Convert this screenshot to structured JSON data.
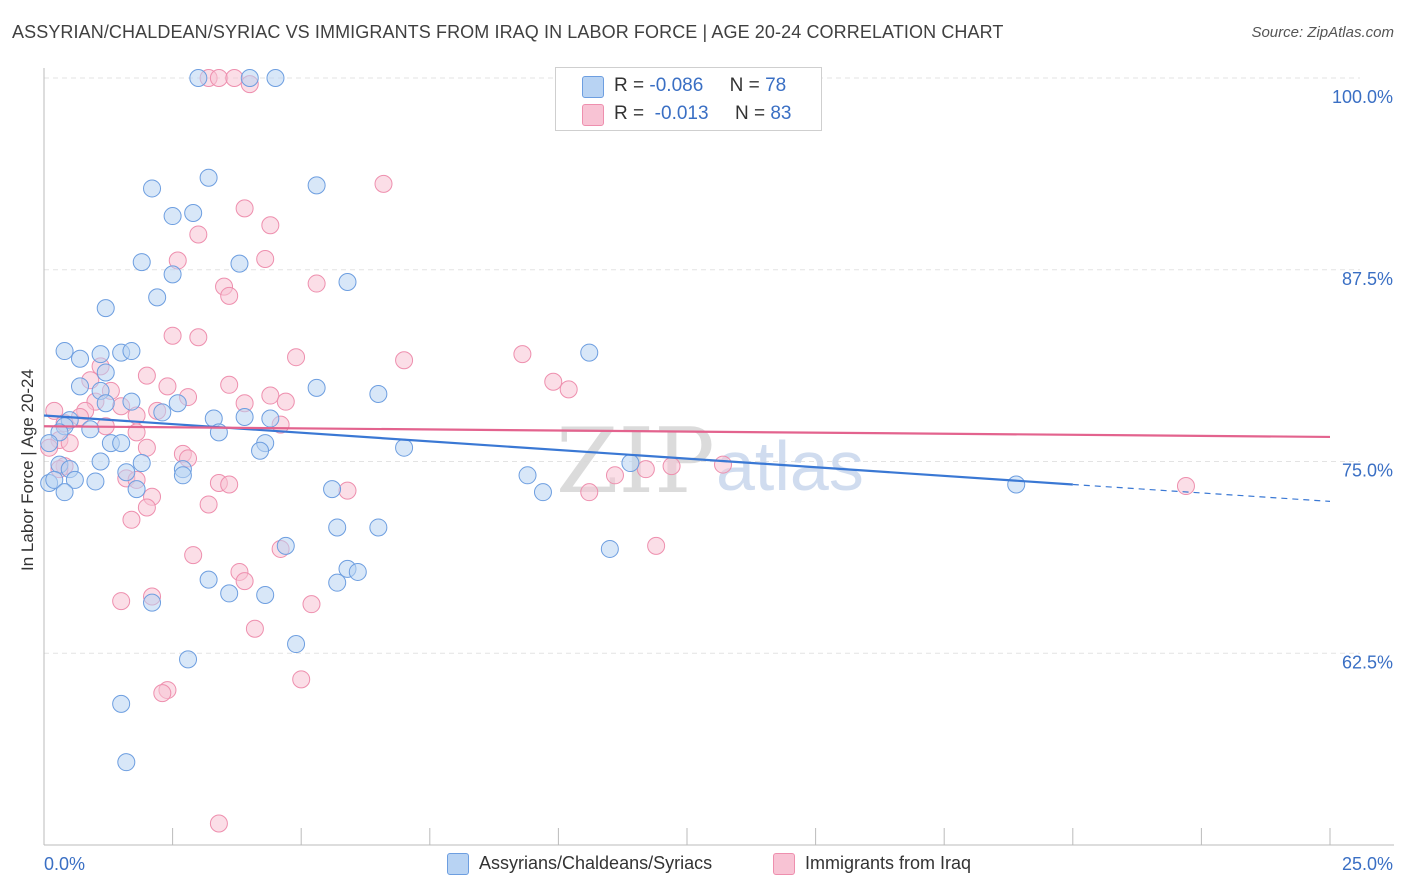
{
  "header": {
    "title": "ASSYRIAN/CHALDEAN/SYRIAC VS IMMIGRANTS FROM IRAQ IN LABOR FORCE | AGE 20-24 CORRELATION CHART",
    "source": "Source: ZipAtlas.com"
  },
  "legend": {
    "series1": {
      "r_label": "R =",
      "r_value": "-0.086",
      "n_label": "N =",
      "n_value": "78"
    },
    "series2": {
      "r_label": "R =",
      "r_value": "-0.013",
      "n_label": "N =",
      "n_value": "83"
    }
  },
  "bottom_legend": {
    "series1": "Assyrians/Chaldeans/Syriacs",
    "series2": "Immigrants from Iraq"
  },
  "watermark": {
    "part1": "ZIP",
    "part2": "atlas"
  },
  "colors": {
    "series1_fill": "#b8d3f3",
    "series1_stroke": "#6d9ee0",
    "series1_line": "#3a78d4",
    "series2_fill": "#f8c3d4",
    "series2_stroke": "#ee8fae",
    "series2_line": "#e3638e",
    "axis_label": "#3a6fc4",
    "grid": "#e3e3e3"
  },
  "chart_data": {
    "type": "scatter",
    "title": "ASSYRIAN/CHALDEAN/SYRIAC VS IMMIGRANTS FROM IRAQ IN LABOR FORCE | AGE 20-24 CORRELATION CHART",
    "xlabel": "",
    "ylabel": "In Labor Force | Age 20-24",
    "xlim": [
      0,
      25
    ],
    "ylim": [
      50,
      101
    ],
    "x_tick_labels": [
      "0.0%",
      "25.0%"
    ],
    "y_ticks": [
      62.5,
      75.0,
      87.5,
      100.0
    ],
    "y_tick_labels": [
      "62.5%",
      "75.0%",
      "87.5%",
      "100.0%"
    ],
    "grid": true,
    "legend_position": "top-center",
    "series": [
      {
        "name": "Assyrians/Chaldeans/Syriacs",
        "r": -0.086,
        "n": 78,
        "trend": {
          "x": [
            0,
            20
          ],
          "y": [
            78.0,
            73.5
          ],
          "dashed_to_x": 25,
          "dashed_end_y": 72.4
        },
        "points": [
          [
            3.0,
            100.0
          ],
          [
            4.0,
            100.0
          ],
          [
            4.5,
            100.0
          ],
          [
            2.1,
            92.8
          ],
          [
            3.2,
            93.5
          ],
          [
            5.3,
            93.0
          ],
          [
            2.5,
            91.0
          ],
          [
            2.9,
            91.2
          ],
          [
            1.9,
            88.0
          ],
          [
            2.5,
            87.2
          ],
          [
            3.8,
            87.9
          ],
          [
            5.9,
            86.7
          ],
          [
            2.2,
            85.7
          ],
          [
            1.2,
            85.0
          ],
          [
            0.4,
            82.2
          ],
          [
            1.1,
            82.0
          ],
          [
            1.5,
            82.1
          ],
          [
            1.7,
            82.2
          ],
          [
            0.7,
            81.7
          ],
          [
            1.2,
            80.8
          ],
          [
            10.6,
            82.1
          ],
          [
            0.7,
            79.9
          ],
          [
            1.1,
            79.6
          ],
          [
            5.3,
            79.8
          ],
          [
            6.5,
            79.4
          ],
          [
            1.2,
            78.8
          ],
          [
            1.7,
            78.9
          ],
          [
            2.6,
            78.8
          ],
          [
            2.3,
            78.2
          ],
          [
            0.5,
            77.7
          ],
          [
            3.3,
            77.8
          ],
          [
            3.9,
            77.9
          ],
          [
            4.4,
            77.8
          ],
          [
            0.4,
            77.3
          ],
          [
            0.3,
            76.9
          ],
          [
            0.9,
            77.1
          ],
          [
            3.4,
            76.9
          ],
          [
            0.1,
            76.2
          ],
          [
            1.3,
            76.2
          ],
          [
            1.5,
            76.2
          ],
          [
            4.3,
            76.2
          ],
          [
            4.2,
            75.7
          ],
          [
            7.0,
            75.9
          ],
          [
            0.3,
            74.8
          ],
          [
            1.1,
            75.0
          ],
          [
            1.9,
            74.9
          ],
          [
            0.5,
            74.5
          ],
          [
            1.6,
            74.3
          ],
          [
            2.7,
            74.5
          ],
          [
            2.7,
            74.1
          ],
          [
            11.4,
            74.9
          ],
          [
            0.1,
            73.6
          ],
          [
            0.2,
            73.8
          ],
          [
            0.6,
            73.8
          ],
          [
            1.0,
            73.7
          ],
          [
            1.8,
            73.2
          ],
          [
            5.6,
            73.2
          ],
          [
            9.4,
            74.1
          ],
          [
            9.7,
            73.0
          ],
          [
            18.9,
            73.5
          ],
          [
            0.4,
            73.0
          ],
          [
            5.7,
            70.7
          ],
          [
            6.5,
            70.7
          ],
          [
            4.7,
            69.5
          ],
          [
            11.0,
            69.3
          ],
          [
            5.9,
            68.0
          ],
          [
            6.1,
            67.8
          ],
          [
            3.2,
            67.3
          ],
          [
            5.7,
            67.1
          ],
          [
            3.6,
            66.4
          ],
          [
            4.3,
            66.3
          ],
          [
            2.1,
            65.8
          ],
          [
            4.9,
            63.1
          ],
          [
            2.8,
            62.1
          ],
          [
            1.5,
            59.2
          ],
          [
            1.6,
            55.4
          ]
        ]
      },
      {
        "name": "Immigrants from Iraq",
        "r": -0.013,
        "n": 83,
        "trend": {
          "x": [
            0,
            25
          ],
          "y": [
            77.3,
            76.6
          ]
        },
        "points": [
          [
            3.2,
            100.0
          ],
          [
            3.4,
            100.0
          ],
          [
            3.7,
            100.0
          ],
          [
            4.0,
            99.6
          ],
          [
            6.6,
            93.1
          ],
          [
            3.9,
            91.5
          ],
          [
            4.4,
            90.4
          ],
          [
            3.0,
            89.8
          ],
          [
            2.6,
            88.1
          ],
          [
            4.3,
            88.2
          ],
          [
            5.3,
            86.6
          ],
          [
            3.5,
            86.4
          ],
          [
            3.6,
            85.8
          ],
          [
            2.5,
            83.2
          ],
          [
            3.0,
            83.1
          ],
          [
            9.3,
            82.0
          ],
          [
            4.9,
            81.8
          ],
          [
            7.0,
            81.6
          ],
          [
            1.1,
            81.2
          ],
          [
            2.0,
            80.6
          ],
          [
            9.9,
            80.2
          ],
          [
            10.2,
            79.7
          ],
          [
            3.6,
            80.0
          ],
          [
            2.4,
            79.9
          ],
          [
            0.9,
            80.3
          ],
          [
            1.3,
            79.6
          ],
          [
            2.8,
            79.2
          ],
          [
            4.4,
            79.3
          ],
          [
            4.7,
            78.9
          ],
          [
            3.9,
            78.8
          ],
          [
            1.0,
            78.9
          ],
          [
            1.5,
            78.6
          ],
          [
            0.2,
            78.3
          ],
          [
            0.8,
            78.3
          ],
          [
            0.7,
            77.9
          ],
          [
            1.8,
            78.0
          ],
          [
            2.2,
            78.3
          ],
          [
            0.4,
            77.5
          ],
          [
            1.2,
            77.3
          ],
          [
            1.8,
            76.9
          ],
          [
            4.6,
            77.4
          ],
          [
            0.3,
            76.4
          ],
          [
            0.5,
            76.2
          ],
          [
            0.1,
            75.9
          ],
          [
            2.0,
            75.9
          ],
          [
            2.7,
            75.5
          ],
          [
            2.8,
            75.2
          ],
          [
            0.4,
            74.7
          ],
          [
            0.3,
            74.5
          ],
          [
            12.2,
            74.7
          ],
          [
            13.2,
            74.8
          ],
          [
            11.7,
            74.5
          ],
          [
            11.1,
            74.1
          ],
          [
            1.6,
            73.9
          ],
          [
            1.8,
            73.8
          ],
          [
            3.4,
            73.6
          ],
          [
            3.6,
            73.5
          ],
          [
            5.9,
            73.1
          ],
          [
            10.6,
            73.0
          ],
          [
            22.2,
            73.4
          ],
          [
            2.1,
            72.7
          ],
          [
            2.0,
            72.0
          ],
          [
            3.2,
            72.2
          ],
          [
            1.7,
            71.2
          ],
          [
            11.9,
            69.5
          ],
          [
            4.6,
            69.3
          ],
          [
            2.9,
            68.9
          ],
          [
            3.8,
            67.8
          ],
          [
            3.9,
            67.2
          ],
          [
            2.1,
            66.2
          ],
          [
            1.5,
            65.9
          ],
          [
            5.2,
            65.7
          ],
          [
            4.1,
            64.1
          ],
          [
            5.0,
            60.8
          ],
          [
            2.4,
            60.1
          ],
          [
            2.3,
            59.9
          ],
          [
            3.4,
            51.4
          ]
        ]
      }
    ]
  }
}
